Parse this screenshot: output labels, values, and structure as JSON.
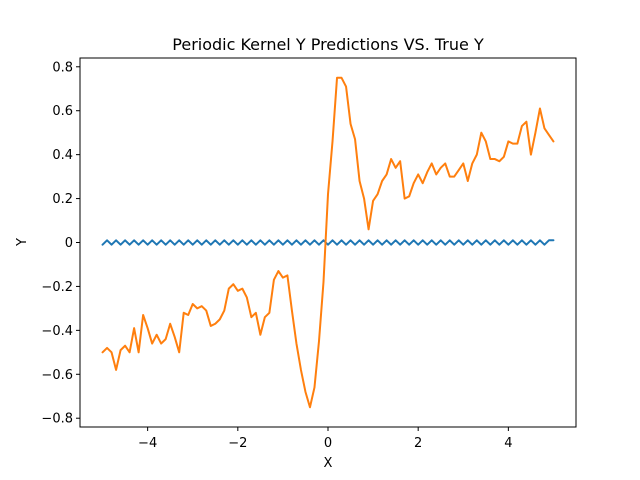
{
  "chart_data": {
    "type": "line",
    "title": "Periodic Kernel Y Predictions VS. True Y",
    "xlabel": "X",
    "ylabel": "Y",
    "xlim": [
      -5.5,
      5.5
    ],
    "ylim": [
      -0.84,
      0.84
    ],
    "xticks": [
      -4,
      -2,
      0,
      2,
      4
    ],
    "xtick_labels": [
      "−4",
      "−2",
      "0",
      "2",
      "4"
    ],
    "yticks": [
      -0.8,
      -0.6,
      -0.4,
      -0.2,
      0,
      0.2,
      0.4,
      0.6,
      0.8
    ],
    "ytick_labels": [
      "−0.8",
      "−0.6",
      "−0.4",
      "−0.2",
      "0",
      "0.2",
      "0.4",
      "0.6",
      "0.8"
    ],
    "grid": false,
    "legend": "none",
    "series": [
      {
        "color": "#1f77b4",
        "x": [
          -5.0,
          -4.9,
          -4.8,
          -4.7,
          -4.6,
          -4.5,
          -4.4,
          -4.3,
          -4.2,
          -4.1,
          -4.0,
          -3.9,
          -3.8,
          -3.7,
          -3.6,
          -3.5,
          -3.4,
          -3.3,
          -3.2,
          -3.1,
          -3.0,
          -2.9,
          -2.8,
          -2.7,
          -2.6,
          -2.5,
          -2.4,
          -2.3,
          -2.2,
          -2.1,
          -2.0,
          -1.9,
          -1.8,
          -1.7,
          -1.6,
          -1.5,
          -1.4,
          -1.3,
          -1.2,
          -1.1,
          -1.0,
          -0.9,
          -0.8,
          -0.7,
          -0.6,
          -0.5,
          -0.4,
          -0.3,
          -0.2,
          -0.1,
          0.0,
          0.1,
          0.2,
          0.3,
          0.4,
          0.5,
          0.6,
          0.7,
          0.8,
          0.9,
          1.0,
          1.1,
          1.2,
          1.3,
          1.4,
          1.5,
          1.6,
          1.7,
          1.8,
          1.9,
          2.0,
          2.1,
          2.2,
          2.3,
          2.4,
          2.5,
          2.6,
          2.7,
          2.8,
          2.9,
          3.0,
          3.1,
          3.2,
          3.3,
          3.4,
          3.5,
          3.6,
          3.7,
          3.8,
          3.9,
          4.0,
          4.1,
          4.2,
          4.3,
          4.4,
          4.5,
          4.6,
          4.7,
          4.8,
          4.9,
          5.0
        ],
        "values": [
          -0.01,
          0.01,
          -0.01,
          0.01,
          -0.01,
          0.01,
          -0.01,
          0.01,
          -0.01,
          0.01,
          -0.01,
          0.01,
          -0.01,
          0.01,
          -0.01,
          0.01,
          -0.01,
          0.01,
          -0.01,
          0.01,
          -0.01,
          0.01,
          -0.01,
          0.01,
          -0.01,
          0.01,
          -0.01,
          0.01,
          -0.01,
          0.01,
          -0.01,
          0.01,
          -0.01,
          0.01,
          -0.01,
          0.01,
          -0.01,
          0.01,
          -0.01,
          0.01,
          -0.01,
          0.01,
          -0.01,
          0.01,
          -0.01,
          0.01,
          -0.01,
          0.01,
          -0.01,
          0.01,
          -0.01,
          0.01,
          -0.01,
          0.01,
          -0.01,
          0.01,
          -0.01,
          0.01,
          -0.01,
          0.01,
          -0.01,
          0.01,
          -0.01,
          0.01,
          -0.01,
          0.01,
          -0.01,
          0.01,
          -0.01,
          0.01,
          -0.01,
          0.01,
          -0.01,
          0.01,
          -0.01,
          0.01,
          -0.01,
          0.01,
          -0.01,
          0.01,
          -0.01,
          0.01,
          -0.01,
          0.01,
          -0.01,
          0.01,
          -0.01,
          0.01,
          -0.01,
          0.01,
          -0.01,
          0.01,
          -0.01,
          0.01,
          -0.01,
          0.01,
          -0.01,
          0.01,
          -0.01,
          0.01,
          0.01
        ]
      },
      {
        "color": "#ff7f0e",
        "x": [
          -5.0,
          -4.9,
          -4.8,
          -4.7,
          -4.6,
          -4.5,
          -4.4,
          -4.3,
          -4.2,
          -4.1,
          -4.0,
          -3.9,
          -3.8,
          -3.7,
          -3.6,
          -3.5,
          -3.4,
          -3.3,
          -3.2,
          -3.1,
          -3.0,
          -2.9,
          -2.8,
          -2.7,
          -2.6,
          -2.5,
          -2.4,
          -2.3,
          -2.2,
          -2.1,
          -2.0,
          -1.9,
          -1.8,
          -1.7,
          -1.6,
          -1.5,
          -1.4,
          -1.3,
          -1.2,
          -1.1,
          -1.0,
          -0.9,
          -0.8,
          -0.7,
          -0.6,
          -0.5,
          -0.4,
          -0.3,
          -0.2,
          -0.1,
          0.0,
          0.1,
          0.2,
          0.3,
          0.4,
          0.5,
          0.6,
          0.7,
          0.8,
          0.9,
          1.0,
          1.1,
          1.2,
          1.3,
          1.4,
          1.5,
          1.6,
          1.7,
          1.8,
          1.9,
          2.0,
          2.1,
          2.2,
          2.3,
          2.4,
          2.5,
          2.6,
          2.7,
          2.8,
          2.9,
          3.0,
          3.1,
          3.2,
          3.3,
          3.4,
          3.5,
          3.6,
          3.7,
          3.8,
          3.9,
          4.0,
          4.1,
          4.2,
          4.3,
          4.4,
          4.5,
          4.6,
          4.7,
          4.8,
          4.9,
          5.0
        ],
        "values": [
          -0.5,
          -0.48,
          -0.5,
          -0.58,
          -0.49,
          -0.47,
          -0.5,
          -0.39,
          -0.5,
          -0.33,
          -0.39,
          -0.46,
          -0.42,
          -0.46,
          -0.44,
          -0.37,
          -0.43,
          -0.5,
          -0.32,
          -0.33,
          -0.28,
          -0.3,
          -0.29,
          -0.31,
          -0.38,
          -0.37,
          -0.35,
          -0.31,
          -0.21,
          -0.19,
          -0.22,
          -0.21,
          -0.25,
          -0.34,
          -0.32,
          -0.42,
          -0.34,
          -0.32,
          -0.17,
          -0.13,
          -0.16,
          -0.15,
          -0.31,
          -0.46,
          -0.58,
          -0.68,
          -0.75,
          -0.66,
          -0.45,
          -0.18,
          0.22,
          0.46,
          0.75,
          0.75,
          0.71,
          0.54,
          0.47,
          0.28,
          0.2,
          0.06,
          0.19,
          0.22,
          0.28,
          0.31,
          0.38,
          0.34,
          0.37,
          0.2,
          0.21,
          0.27,
          0.31,
          0.27,
          0.32,
          0.36,
          0.31,
          0.34,
          0.36,
          0.3,
          0.3,
          0.33,
          0.36,
          0.28,
          0.36,
          0.4,
          0.5,
          0.46,
          0.38,
          0.38,
          0.37,
          0.39,
          0.46,
          0.45,
          0.45,
          0.53,
          0.55,
          0.4,
          0.5,
          0.61,
          0.52,
          0.49,
          0.46
        ]
      }
    ]
  }
}
